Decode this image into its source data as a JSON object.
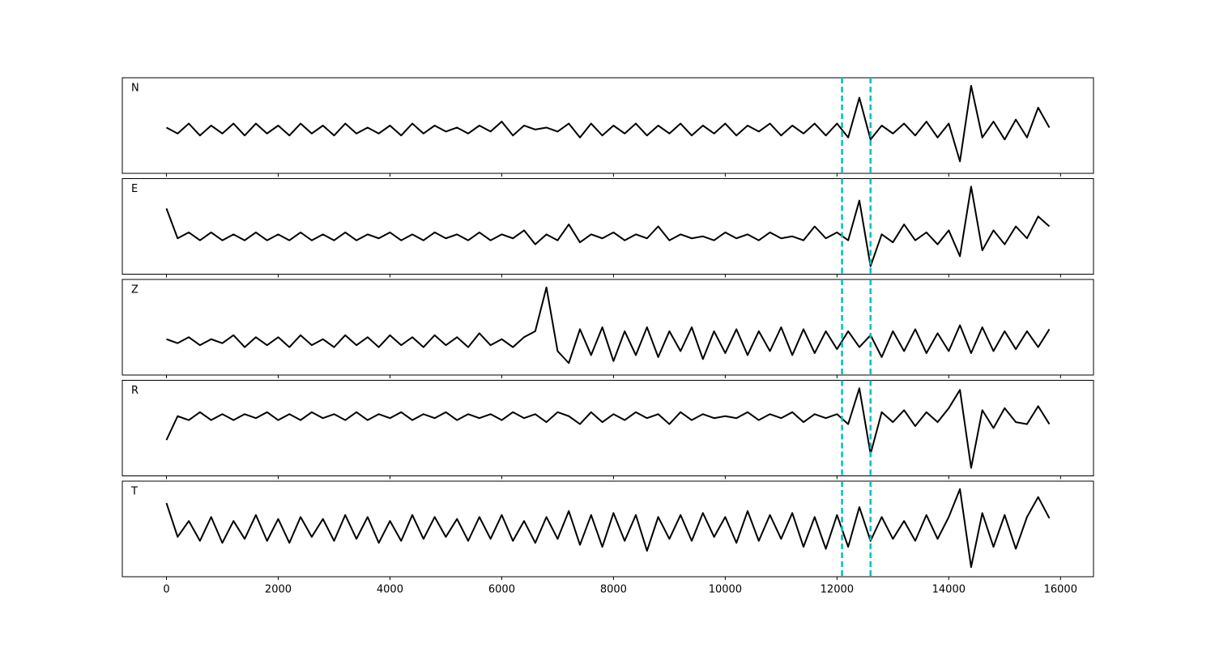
{
  "chart_data": {
    "type": "line",
    "layout": "stacked",
    "x": [
      0,
      200,
      400,
      600,
      800,
      1000,
      1200,
      1400,
      1600,
      1800,
      2000,
      2200,
      2400,
      2600,
      2800,
      3000,
      3200,
      3400,
      3600,
      3800,
      4000,
      4200,
      4400,
      4600,
      4800,
      5000,
      5200,
      5400,
      5600,
      5800,
      6000,
      6200,
      6400,
      6600,
      6800,
      7000,
      7200,
      7400,
      7600,
      7800,
      8000,
      8200,
      8400,
      8600,
      8800,
      9000,
      9200,
      9400,
      9600,
      9800,
      10000,
      10200,
      10400,
      10600,
      10800,
      11000,
      11200,
      11400,
      11600,
      11800,
      12000,
      12200,
      12400,
      12600,
      12800,
      13000,
      13200,
      13400,
      13600,
      13800,
      14000,
      14200,
      14400,
      14600,
      14800,
      15000,
      15200,
      15400,
      15600,
      15800
    ],
    "xlim": [
      -790,
      16590
    ],
    "xticks": [
      0,
      2000,
      4000,
      6000,
      8000,
      10000,
      12000,
      14000,
      16000
    ],
    "ylim": [
      -1.2,
      1.2
    ],
    "vlines": {
      "x": [
        12090,
        12600
      ],
      "color": "#00bfbf"
    },
    "series": [
      {
        "name": "N",
        "color": "#000000",
        "values": [
          -0.05,
          -0.2,
          0.05,
          -0.25,
          0.0,
          -0.2,
          0.05,
          -0.25,
          0.05,
          -0.2,
          0.0,
          -0.25,
          0.05,
          -0.2,
          0.0,
          -0.25,
          0.05,
          -0.2,
          -0.05,
          -0.2,
          0.0,
          -0.25,
          0.05,
          -0.2,
          0.0,
          -0.15,
          -0.05,
          -0.2,
          0.0,
          -0.15,
          0.1,
          -0.25,
          0.0,
          -0.1,
          -0.05,
          -0.15,
          0.05,
          -0.3,
          0.05,
          -0.25,
          0.0,
          -0.2,
          0.05,
          -0.25,
          0.0,
          -0.2,
          0.05,
          -0.25,
          0.0,
          -0.2,
          0.05,
          -0.25,
          0.0,
          -0.15,
          0.05,
          -0.25,
          0.0,
          -0.2,
          0.05,
          -0.25,
          0.05,
          -0.3,
          0.7,
          -0.35,
          0.0,
          -0.2,
          0.05,
          -0.25,
          0.1,
          -0.3,
          0.05,
          -0.9,
          1.0,
          -0.3,
          0.1,
          -0.35,
          0.15,
          -0.3,
          0.45,
          -0.05
        ]
      },
      {
        "name": "E",
        "color": "#000000",
        "values": [
          0.45,
          -0.3,
          -0.15,
          -0.35,
          -0.15,
          -0.35,
          -0.2,
          -0.35,
          -0.15,
          -0.35,
          -0.2,
          -0.35,
          -0.15,
          -0.35,
          -0.2,
          -0.35,
          -0.15,
          -0.35,
          -0.2,
          -0.3,
          -0.15,
          -0.35,
          -0.2,
          -0.35,
          -0.15,
          -0.3,
          -0.2,
          -0.35,
          -0.15,
          -0.35,
          -0.2,
          -0.3,
          -0.1,
          -0.45,
          -0.2,
          -0.35,
          0.05,
          -0.4,
          -0.2,
          -0.3,
          -0.15,
          -0.35,
          -0.2,
          -0.3,
          0.0,
          -0.35,
          -0.2,
          -0.3,
          -0.25,
          -0.35,
          -0.15,
          -0.3,
          -0.2,
          -0.35,
          -0.15,
          -0.3,
          -0.25,
          -0.35,
          0.0,
          -0.3,
          -0.15,
          -0.35,
          0.65,
          -1.0,
          -0.2,
          -0.4,
          0.05,
          -0.35,
          -0.15,
          -0.45,
          -0.1,
          -0.75,
          1.0,
          -0.6,
          -0.1,
          -0.45,
          0.0,
          -0.3,
          0.25,
          0.0
        ]
      },
      {
        "name": "Z",
        "color": "#000000",
        "values": [
          -0.3,
          -0.4,
          -0.25,
          -0.45,
          -0.3,
          -0.4,
          -0.2,
          -0.5,
          -0.25,
          -0.45,
          -0.25,
          -0.5,
          -0.2,
          -0.45,
          -0.3,
          -0.5,
          -0.2,
          -0.45,
          -0.25,
          -0.5,
          -0.2,
          -0.45,
          -0.25,
          -0.5,
          -0.2,
          -0.45,
          -0.25,
          -0.5,
          -0.15,
          -0.45,
          -0.3,
          -0.5,
          -0.25,
          -0.1,
          1.0,
          -0.6,
          -0.9,
          -0.05,
          -0.7,
          0.0,
          -0.85,
          -0.1,
          -0.7,
          0.0,
          -0.75,
          -0.1,
          -0.6,
          0.0,
          -0.8,
          -0.1,
          -0.65,
          -0.05,
          -0.7,
          -0.1,
          -0.6,
          0.0,
          -0.7,
          -0.05,
          -0.65,
          -0.1,
          -0.55,
          -0.1,
          -0.5,
          -0.2,
          -0.75,
          -0.1,
          -0.6,
          -0.05,
          -0.65,
          -0.15,
          -0.6,
          0.05,
          -0.65,
          0.0,
          -0.6,
          -0.1,
          -0.55,
          -0.1,
          -0.5,
          -0.05
        ]
      },
      {
        "name": "R",
        "color": "#000000",
        "values": [
          -0.3,
          0.3,
          0.2,
          0.4,
          0.2,
          0.35,
          0.2,
          0.35,
          0.25,
          0.4,
          0.2,
          0.35,
          0.2,
          0.4,
          0.25,
          0.35,
          0.2,
          0.4,
          0.2,
          0.35,
          0.25,
          0.4,
          0.2,
          0.35,
          0.25,
          0.4,
          0.2,
          0.35,
          0.25,
          0.35,
          0.2,
          0.4,
          0.25,
          0.35,
          0.15,
          0.4,
          0.3,
          0.1,
          0.4,
          0.15,
          0.35,
          0.2,
          0.4,
          0.25,
          0.35,
          0.1,
          0.4,
          0.2,
          0.35,
          0.25,
          0.3,
          0.25,
          0.4,
          0.2,
          0.35,
          0.25,
          0.4,
          0.15,
          0.35,
          0.25,
          0.35,
          0.1,
          1.0,
          -0.65,
          0.4,
          0.15,
          0.45,
          0.05,
          0.4,
          0.15,
          0.5,
          0.96,
          -1.0,
          0.45,
          0.0,
          0.5,
          0.15,
          0.1,
          0.55,
          0.1
        ]
      },
      {
        "name": "T",
        "color": "#000000",
        "values": [
          0.65,
          -0.2,
          0.2,
          -0.3,
          0.3,
          -0.35,
          0.2,
          -0.25,
          0.35,
          -0.3,
          0.25,
          -0.35,
          0.3,
          -0.2,
          0.25,
          -0.3,
          0.35,
          -0.25,
          0.3,
          -0.35,
          0.2,
          -0.3,
          0.35,
          -0.25,
          0.3,
          -0.2,
          0.25,
          -0.3,
          0.3,
          -0.25,
          0.35,
          -0.3,
          0.2,
          -0.35,
          0.3,
          -0.25,
          0.45,
          -0.4,
          0.35,
          -0.45,
          0.4,
          -0.3,
          0.35,
          -0.55,
          0.3,
          -0.25,
          0.35,
          -0.3,
          0.4,
          -0.2,
          0.3,
          -0.35,
          0.45,
          -0.3,
          0.35,
          -0.25,
          0.4,
          -0.45,
          0.3,
          -0.5,
          0.35,
          -0.45,
          0.55,
          -0.3,
          0.3,
          -0.25,
          0.2,
          -0.3,
          0.35,
          -0.25,
          0.3,
          1.0,
          -0.96,
          0.4,
          -0.45,
          0.35,
          -0.5,
          0.3,
          0.8,
          0.27
        ]
      }
    ]
  }
}
